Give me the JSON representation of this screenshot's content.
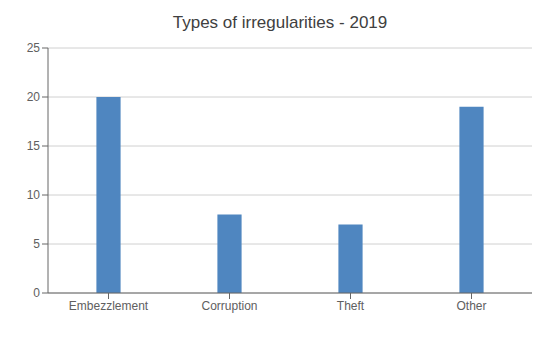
{
  "chart_data": {
    "type": "bar",
    "title": "Types of irregularities - 2019",
    "categories": [
      "Embezzlement",
      "Corruption",
      "Theft",
      "Other"
    ],
    "values": [
      20,
      8,
      7,
      19
    ],
    "color": "#4F86C0",
    "ylim": [
      0,
      25
    ],
    "yticks": [
      0,
      5,
      10,
      15,
      20,
      25
    ],
    "grid": true
  }
}
